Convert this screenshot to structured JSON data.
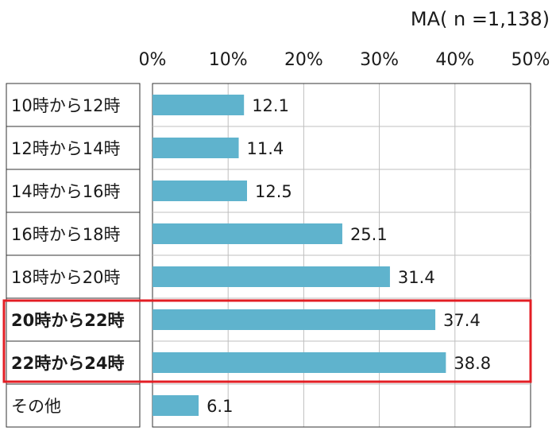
{
  "chart_data": {
    "type": "bar",
    "orientation": "horizontal",
    "sample_note": "MA( n =1,138)",
    "categories": [
      "10時から12時",
      "12時から14時",
      "14時から16時",
      "16時から18時",
      "18時から20時",
      "20時から22時",
      "22時から24時",
      "その他"
    ],
    "values": [
      12.1,
      11.4,
      12.5,
      25.1,
      31.4,
      37.4,
      38.8,
      6.1
    ],
    "value_labels": [
      "12.1",
      "11.4",
      "12.5",
      "25.1",
      "31.4",
      "37.4",
      "38.8",
      "6.1"
    ],
    "highlighted_categories": [
      "20時から22時",
      "22時から24時"
    ],
    "x_ticks": [
      "0%",
      "10%",
      "20%",
      "30%",
      "40%",
      "50%"
    ],
    "xlim": [
      0,
      50
    ],
    "grid": true,
    "colors": {
      "bar": "#5fb3cd",
      "highlight_box": "#e31e24",
      "grid": "#bfbfbf"
    }
  }
}
